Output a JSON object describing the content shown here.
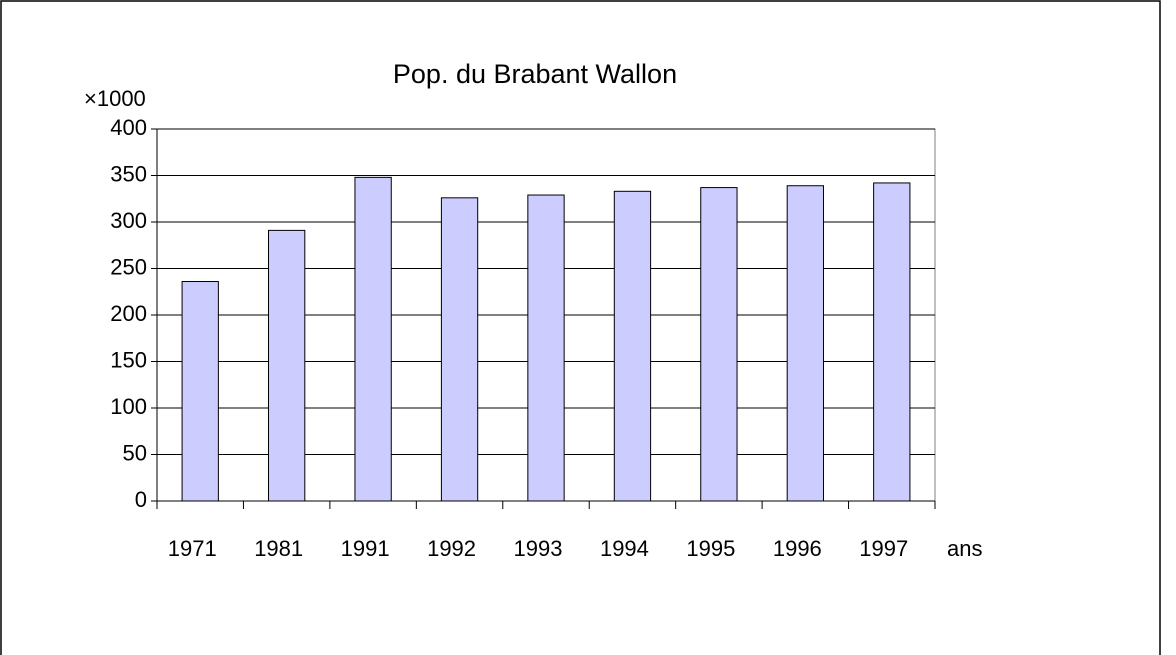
{
  "chart_data": {
    "type": "bar",
    "title": "Pop. du Brabant Wallon",
    "y_unit": "×1000",
    "x_label": "ans",
    "categories": [
      "1971",
      "1981",
      "1991",
      "1992",
      "1993",
      "1994",
      "1995",
      "1996",
      "1997"
    ],
    "values": [
      236,
      291,
      348,
      326,
      329,
      333,
      337,
      339,
      342
    ],
    "color": "#ccccff",
    "ylim": [
      0,
      400
    ],
    "yticks": [
      0,
      50,
      100,
      150,
      200,
      250,
      300,
      350,
      400
    ],
    "grid": true
  }
}
